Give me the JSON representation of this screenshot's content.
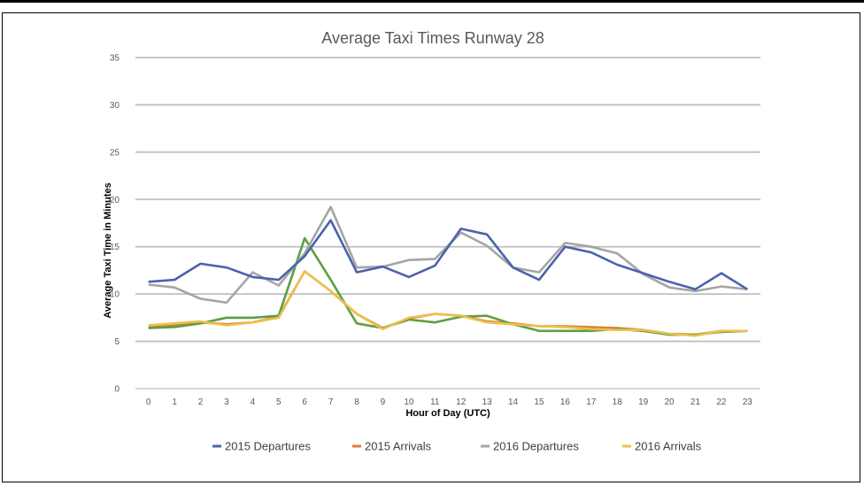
{
  "chart_data": {
    "type": "line",
    "title": "Average Taxi Times Runway 28",
    "xlabel": "Hour of Day (UTC)",
    "ylabel": "Average Taxi Time in Minutes",
    "ylim": [
      0,
      35
    ],
    "yticks": [
      0,
      5,
      10,
      15,
      20,
      25,
      30,
      35
    ],
    "grid": true,
    "legend_position": "bottom",
    "x": [
      0,
      1,
      2,
      3,
      4,
      5,
      6,
      7,
      8,
      9,
      10,
      11,
      12,
      13,
      14,
      15,
      16,
      17,
      18,
      19,
      20,
      21,
      22,
      23
    ],
    "series": [
      {
        "name": "2015 Departures",
        "color": "#4a63ad",
        "values": [
          11.3,
          11.5,
          13.2,
          12.8,
          11.8,
          11.5,
          14.0,
          17.8,
          12.3,
          12.9,
          11.8,
          13.0,
          16.9,
          16.3,
          12.8,
          11.5,
          15.0,
          14.4,
          13.1,
          12.2,
          11.3,
          10.5,
          12.2,
          10.5
        ]
      },
      {
        "name": "2015 Arrivals",
        "color": "#e07b39",
        "values": [
          6.6,
          6.7,
          7.0,
          6.8,
          7.0,
          7.6,
          12.4,
          10.3,
          7.9,
          6.4,
          7.4,
          7.9,
          7.7,
          7.1,
          6.9,
          6.6,
          6.6,
          6.5,
          6.4,
          6.2,
          5.8,
          5.7,
          6.1,
          6.1
        ]
      },
      {
        "name": "2016 Departures",
        "color": "#a5a5a5",
        "values": [
          11.0,
          10.7,
          9.5,
          9.1,
          12.3,
          10.9,
          14.3,
          19.2,
          12.8,
          12.9,
          13.6,
          13.7,
          16.5,
          15.1,
          12.8,
          12.3,
          15.4,
          15.0,
          14.3,
          12.1,
          10.7,
          10.3,
          10.8,
          10.5
        ]
      },
      {
        "name": "2016 Arrivals",
        "color": "#ecc04b",
        "values": [
          6.7,
          6.9,
          7.1,
          6.7,
          7.0,
          7.5,
          12.4,
          10.3,
          7.9,
          6.3,
          7.5,
          7.9,
          7.7,
          7.0,
          6.8,
          6.6,
          6.5,
          6.3,
          6.2,
          6.2,
          5.8,
          5.6,
          6.1,
          6.1
        ]
      },
      {
        "color": "#5e9e43",
        "values": [
          6.4,
          6.5,
          6.9,
          7.5,
          7.5,
          7.7,
          15.9,
          11.5,
          6.9,
          6.4,
          7.3,
          7.0,
          7.6,
          7.7,
          6.8,
          6.1,
          6.1,
          6.1,
          6.3,
          6.1,
          5.7,
          5.7,
          6.0,
          6.1
        ]
      }
    ]
  }
}
